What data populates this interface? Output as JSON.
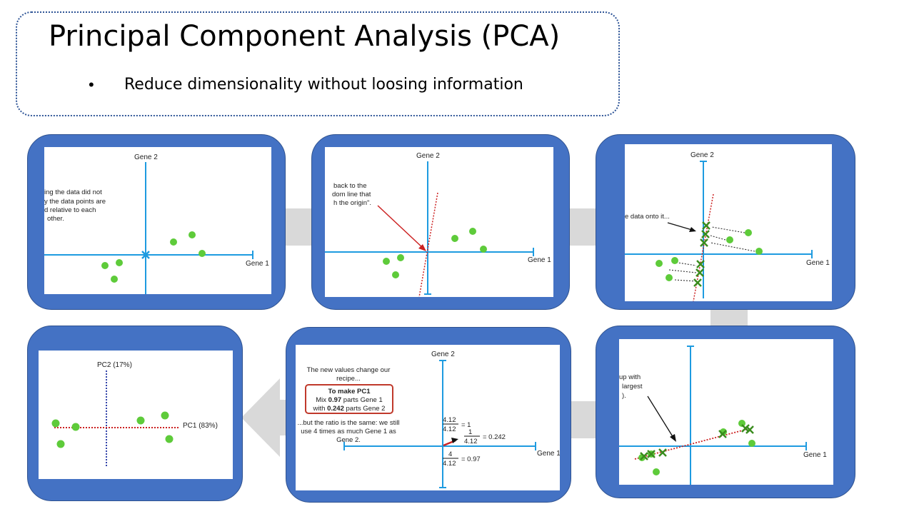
{
  "slide": {
    "title": "Principal Component Analysis (PCA)",
    "bullet": "Reduce dimensionality without loosing information"
  },
  "panel1": {
    "x_axis": "Gene 1",
    "y_axis": "Gene 2",
    "note": [
      "ing the data did not",
      "y the data points are",
      "d relative to each",
      "other."
    ]
  },
  "panel2": {
    "x_axis": "Gene 1",
    "y_axis": "Gene 2",
    "note": [
      "back to the",
      "dom line that",
      "h the origin\"."
    ]
  },
  "panel3": {
    "x_axis": "Gene 1",
    "y_axis": "Gene 2",
    "note": "e data onto it..."
  },
  "panel4": {
    "x_axis": "Gene 1",
    "note": [
      "up with",
      "largest",
      ")."
    ]
  },
  "panel5": {
    "x_axis": "Gene 1",
    "y_axis": "Gene 2",
    "intro": [
      "The new values change our",
      "recipe..."
    ],
    "box_title": "To make PC1",
    "box_line1_pre": "Mix ",
    "box_line1_val": "0.97",
    "box_line1_post": " parts Gene 1",
    "box_line2_pre": "with ",
    "box_line2_val": "0.242",
    "box_line2_post": " parts Gene 2",
    "ratio_note": [
      "...but the ratio is the same: we still",
      "use 4 times as much Gene 1 as",
      "Gene 2."
    ],
    "eq1_num": "4.12",
    "eq1_den": "4.12",
    "eq1_res": "= 1",
    "eq2_num": "1",
    "eq2_den": "4.12",
    "eq2_res": "= 0.242",
    "eq3_num": "4",
    "eq3_den": "4.12",
    "eq3_res": "= 0.97"
  },
  "panel6": {
    "x_axis": "PC1 (83%)",
    "y_axis": "PC2 (17%)"
  },
  "colors": {
    "panel": "#4472c4",
    "axis": "#1e9be0",
    "point": "#5ecb3a",
    "projection": "#3a8c1e",
    "fit_line": "#cc2222",
    "pc_axis": "#3344aa",
    "arrow": "#d9d9d9"
  }
}
